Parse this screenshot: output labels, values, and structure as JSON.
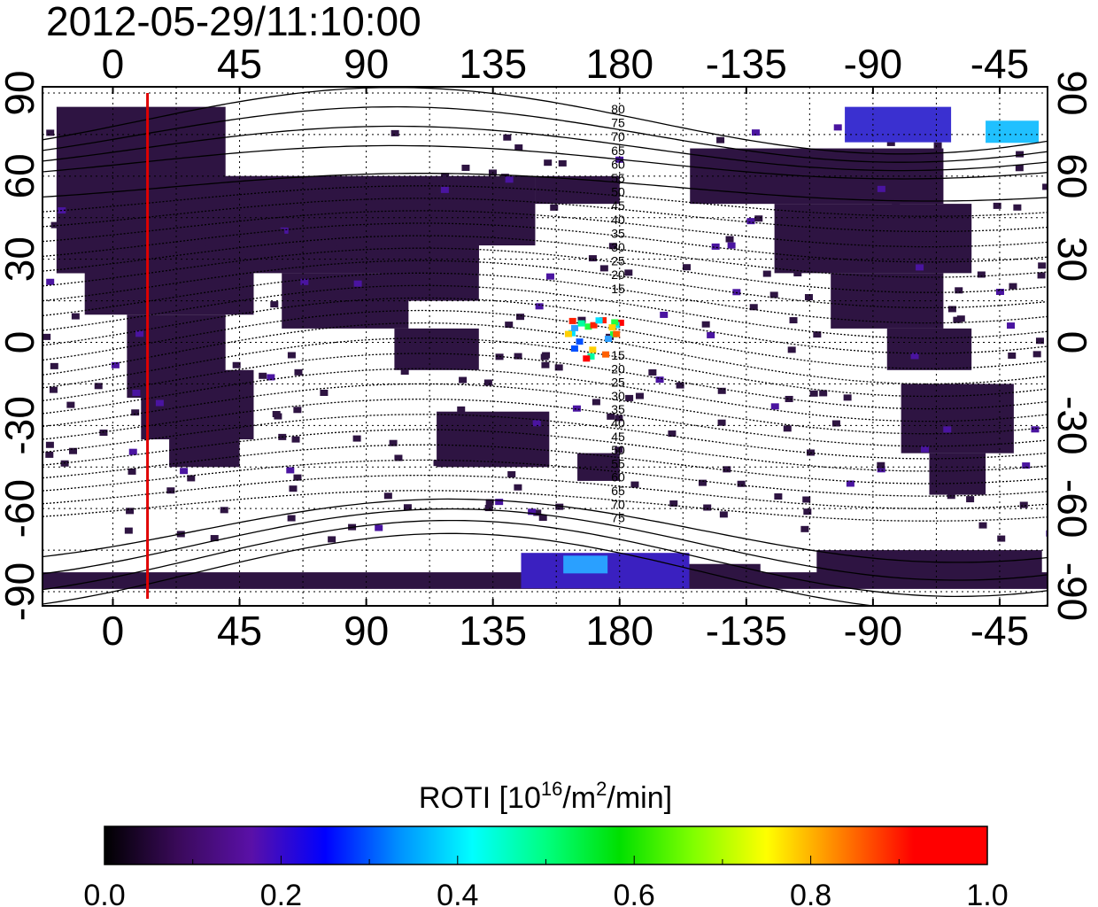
{
  "title": "2012-05-29/11:10:00",
  "lon_ticks": [
    {
      "lon": 0,
      "label": "0"
    },
    {
      "lon": 45,
      "label": "45"
    },
    {
      "lon": 90,
      "label": "90"
    },
    {
      "lon": 135,
      "label": "135"
    },
    {
      "lon": 180,
      "label": "180"
    },
    {
      "lon": 225,
      "label": "-135"
    },
    {
      "lon": 270,
      "label": "-90"
    },
    {
      "lon": 315,
      "label": "-45"
    }
  ],
  "lat_ticks": [
    {
      "lat": 90,
      "label": "90"
    },
    {
      "lat": 60,
      "label": "60"
    },
    {
      "lat": 30,
      "label": "30"
    },
    {
      "lat": 0,
      "label": "0"
    },
    {
      "lat": -30,
      "label": "-30"
    },
    {
      "lat": -60,
      "label": "-60"
    },
    {
      "lat": -90,
      "label": "-90"
    }
  ],
  "lon_range": [
    -25,
    332
  ],
  "lat_range": [
    -90,
    90
  ],
  "marker_longitude": 12.3,
  "marker_color": "#e00000",
  "contour_labels_north": [
    "80",
    "75",
    "70",
    "65",
    "60",
    "55",
    "50",
    "45",
    "40",
    "35",
    "30",
    "25",
    "20",
    "15"
  ],
  "contour_labels_south": [
    "15",
    "20",
    "25",
    "30",
    "35",
    "40",
    "45",
    "50",
    "55",
    "60",
    "65",
    "70",
    "75"
  ],
  "colorbar": {
    "title_main": "ROTI  [10",
    "title_sup1": "16",
    "title_mid": "/m",
    "title_sup2": "2",
    "title_end": "/min]",
    "ticks": [
      "0.0",
      "0.2",
      "0.4",
      "0.6",
      "0.8",
      "1.0"
    ],
    "range": [
      0,
      1
    ],
    "stops": [
      "#000000",
      "#3a0a5a",
      "#5a10a8",
      "#0000ff",
      "#0090ff",
      "#00ffff",
      "#00ff80",
      "#00e000",
      "#80ff00",
      "#ffff00",
      "#ff8000",
      "#ff0000",
      "#ff0000"
    ]
  },
  "land_color": "#2e1442"
}
